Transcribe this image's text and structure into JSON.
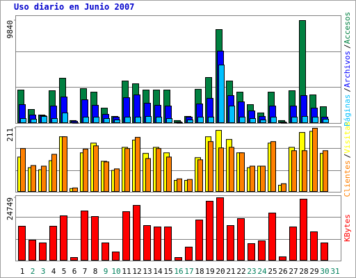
{
  "chart_data": [
    {
      "type": "bar",
      "title": "Uso diario en Junio 2007",
      "legend_separator": "/",
      "ylim": [
        0,
        9840
      ],
      "yticks": [
        9840
      ],
      "series": [
        {
          "name": "Accesos",
          "color": "#008040",
          "values": [
            3190,
            1330,
            800,
            3125,
            4320,
            270,
            3325,
            2990,
            1460,
            665,
            4055,
            3790,
            3190,
            3190,
            3190,
            270,
            665,
            3260,
            4390,
            8975,
            4055,
            2990,
            1795,
            1000,
            2990,
            270,
            3125,
            9840,
            2725,
            1595,
            0
          ]
        },
        {
          "name": "Archivos",
          "color": "#0000ff",
          "values": [
            1795,
            800,
            730,
            1660,
            2525,
            200,
            2260,
            1730,
            865,
            600,
            2460,
            2725,
            1930,
            1730,
            1660,
            135,
            600,
            1860,
            2395,
            6915,
            2660,
            2060,
            1195,
            665,
            1660,
            135,
            1660,
            2660,
            1460,
            600,
            0
          ]
        },
        {
          "name": "Páginas",
          "color": "#00c0ff",
          "values": [
            465,
            400,
            665,
            465,
            1000,
            65,
            600,
            600,
            465,
            330,
            600,
            600,
            665,
            600,
            465,
            65,
            330,
            600,
            600,
            5585,
            1660,
            600,
            465,
            330,
            600,
            65,
            600,
            665,
            600,
            400,
            0
          ]
        }
      ]
    },
    {
      "type": "bar",
      "legend_separator": "/",
      "ylim": [
        0,
        211
      ],
      "yticks": [
        211
      ],
      "series": [
        {
          "name": "Visitas",
          "color": "#ffff00",
          "values": [
            116,
            81,
            74,
            104,
            183,
            12,
            130,
            162,
            102,
            72,
            148,
            172,
            128,
            148,
            130,
            39,
            39,
            114,
            183,
            204,
            174,
            130,
            81,
            86,
            162,
            23,
            148,
            197,
            201,
            128,
            0
          ]
        },
        {
          "name": "Clientes",
          "color": "#ff8000",
          "values": [
            144,
            88,
            86,
            125,
            183,
            14,
            142,
            153,
            100,
            77,
            144,
            181,
            111,
            144,
            116,
            44,
            42,
            107,
            167,
            146,
            148,
            130,
            86,
            86,
            167,
            28,
            137,
            137,
            211,
            137,
            0
          ]
        }
      ]
    },
    {
      "type": "bar",
      "ylim": [
        0,
        24749
      ],
      "yticks": [
        24749
      ],
      "categories": [
        "1",
        "2",
        "3",
        "4",
        "5",
        "6",
        "7",
        "8",
        "9",
        "10",
        "11",
        "12",
        "13",
        "14",
        "15",
        "16",
        "17",
        "18",
        "19",
        "20",
        "21",
        "22",
        "23",
        "24",
        "25",
        "26",
        "27",
        "28",
        "29",
        "30",
        "31"
      ],
      "category_colors": [
        "#000000",
        "#00805c",
        "#00805c",
        "#000000",
        "#000000",
        "#000000",
        "#000000",
        "#000000",
        "#00805c",
        "#00805c",
        "#000000",
        "#000000",
        "#000000",
        "#000000",
        "#000000",
        "#00805c",
        "#00805c",
        "#000000",
        "#000000",
        "#000000",
        "#000000",
        "#000000",
        "#00805c",
        "#00805c",
        "#000000",
        "#000000",
        "#000000",
        "#000000",
        "#000000",
        "#00805c",
        "#00805c"
      ],
      "series": [
        {
          "name": "KBytes",
          "color": "#ff0000",
          "values": [
            13600,
            8160,
            7070,
            13600,
            17680,
            1360,
            19580,
            17400,
            7070,
            3535,
            19310,
            21760,
            13870,
            13330,
            13330,
            1360,
            5440,
            16050,
            23390,
            24749,
            13870,
            16590,
            6800,
            7890,
            18770,
            1630,
            13330,
            24200,
            11420,
            7070,
            0
          ]
        }
      ]
    }
  ]
}
